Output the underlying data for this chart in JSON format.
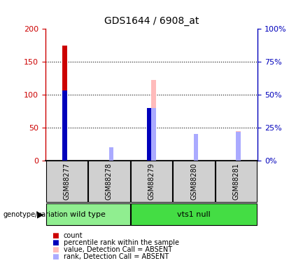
{
  "title": "GDS1644 / 6908_at",
  "samples": [
    "GSM88277",
    "GSM88278",
    "GSM88279",
    "GSM88280",
    "GSM88281"
  ],
  "count_values": [
    175,
    0,
    0,
    0,
    0
  ],
  "percentile_values": [
    53,
    0,
    40,
    0,
    0
  ],
  "absent_value_values": [
    0,
    9,
    122,
    37,
    45
  ],
  "absent_rank_values": [
    0,
    10,
    40,
    20,
    22
  ],
  "ylim_left": [
    0,
    200
  ],
  "ylim_right": [
    0,
    100
  ],
  "left_ticks": [
    0,
    50,
    100,
    150,
    200
  ],
  "right_ticks": [
    0,
    25,
    50,
    75,
    100
  ],
  "bar_width": 0.09,
  "colors": {
    "count": "#cc0000",
    "percentile": "#0000bb",
    "absent_value": "#ffbbbb",
    "absent_rank": "#aaaaff",
    "tick_left": "#cc0000",
    "tick_right": "#0000bb",
    "bg_plot": "#ffffff",
    "label_box": "#d0d0d0",
    "group_wild": "#90EE90",
    "group_vts1": "#44dd44"
  },
  "legend_items": [
    {
      "label": "count",
      "color": "#cc0000"
    },
    {
      "label": "percentile rank within the sample",
      "color": "#0000bb"
    },
    {
      "label": "value, Detection Call = ABSENT",
      "color": "#ffbbbb"
    },
    {
      "label": "rank, Detection Call = ABSENT",
      "color": "#aaaaff"
    }
  ]
}
